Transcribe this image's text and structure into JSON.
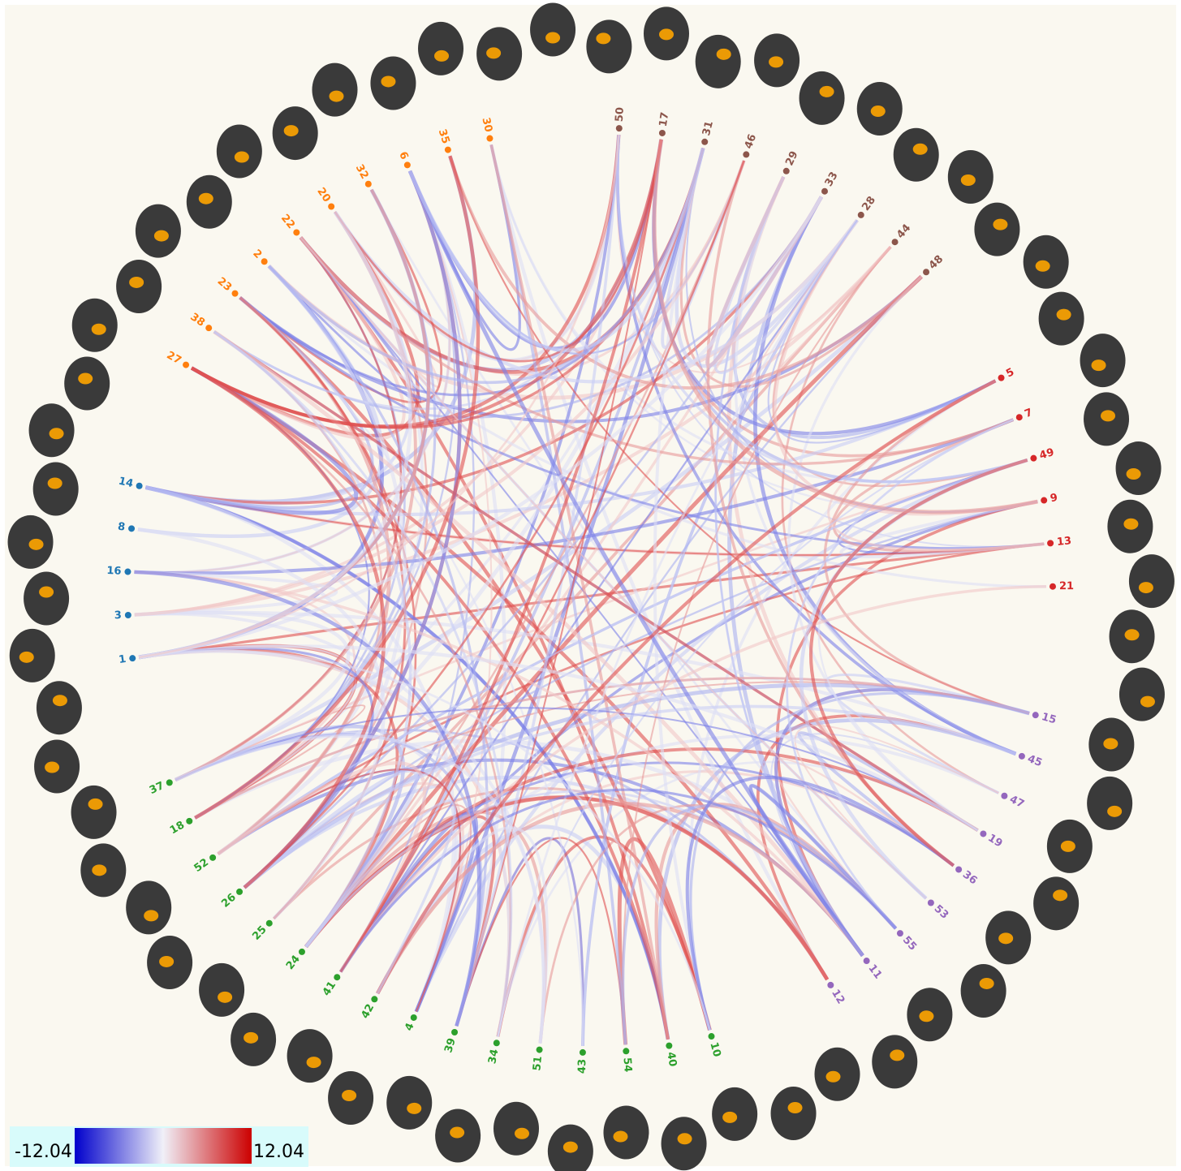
{
  "chart_data": {
    "type": "connectogram",
    "groups": [
      {
        "color": "#8c564b",
        "nodes": [
          "50",
          "17",
          "31",
          "46",
          "29",
          "33",
          "28",
          "44",
          "48"
        ]
      },
      {
        "color": "#d62728",
        "nodes": [
          "5",
          "7",
          "49",
          "9",
          "13",
          "21"
        ]
      },
      {
        "color": "#9467bd",
        "nodes": [
          "15",
          "45",
          "47",
          "19",
          "36",
          "53",
          "55",
          "11",
          "12"
        ]
      },
      {
        "color": "#2ca02c",
        "nodes": [
          "10",
          "40",
          "54",
          "43",
          "51",
          "34",
          "39",
          "4",
          "42",
          "41",
          "24",
          "25",
          "26",
          "52",
          "18",
          "37"
        ]
      },
      {
        "color": "#1f77b4",
        "nodes": [
          "1",
          "3",
          "16",
          "8",
          "14"
        ]
      },
      {
        "color": "#ff7f0e",
        "nodes": [
          "27",
          "38",
          "23",
          "2",
          "22",
          "20",
          "32",
          "6",
          "35",
          "30"
        ]
      }
    ],
    "colorbar": {
      "min": -12.04,
      "max": 12.04,
      "colors": [
        "#0000cc",
        "#f0f0f8",
        "#cc0000"
      ]
    }
  }
}
